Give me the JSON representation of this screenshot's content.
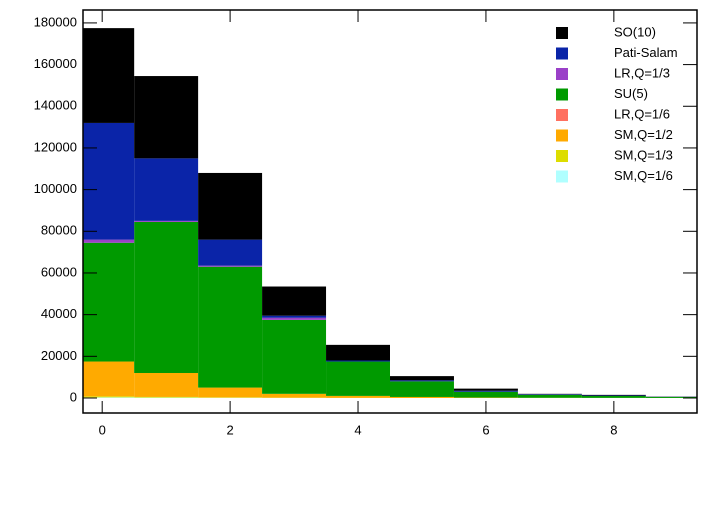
{
  "chart_data": {
    "type": "stacked-histogram",
    "bins": [
      -0.5,
      0.5,
      1.5,
      2.5,
      3.5,
      4.5,
      5.5,
      6.5,
      7.5,
      8.5,
      9.5
    ],
    "series": [
      {
        "name": "SM,Q=1/6",
        "color": "#b0ffff",
        "values": [
          300,
          200,
          100,
          50,
          0,
          0,
          0,
          0,
          0,
          0
        ]
      },
      {
        "name": "SM,Q=1/3",
        "color": "#dddd00",
        "values": [
          500,
          300,
          200,
          100,
          50,
          0,
          0,
          0,
          0,
          0
        ]
      },
      {
        "name": "SM,Q=1/2",
        "color": "#ffaa00",
        "values": [
          16700,
          11500,
          4700,
          1850,
          950,
          500,
          200,
          100,
          50,
          20
        ]
      },
      {
        "name": "LR,Q=1/6",
        "color": "#ff7060",
        "values": [
          0,
          0,
          0,
          0,
          0,
          0,
          0,
          0,
          0,
          0
        ]
      },
      {
        "name": "SU(5)",
        "color": "#009a00",
        "values": [
          57000,
          72500,
          58000,
          35500,
          16500,
          7500,
          2800,
          1400,
          950,
          480
        ]
      },
      {
        "name": "LR,Q=1/3",
        "color": "#9a40c8",
        "values": [
          1500,
          500,
          500,
          1000,
          0,
          0,
          0,
          0,
          0,
          0
        ]
      },
      {
        "name": "Pati-Salam",
        "color": "#0a24a8",
        "values": [
          56000,
          30000,
          12500,
          1000,
          500,
          500,
          500,
          300,
          200,
          100
        ]
      },
      {
        "name": "SO(10)",
        "color": "#000000",
        "values": [
          45500,
          39500,
          32000,
          14000,
          7500,
          2000,
          1000,
          200,
          300,
          100
        ]
      }
    ],
    "xlim": [
      -0.3,
      9.3
    ],
    "xticks": [
      0,
      2,
      4,
      6,
      8
    ],
    "ylim": [
      -7200,
      186200
    ],
    "yticks": [
      0,
      20000,
      40000,
      60000,
      80000,
      100000,
      120000,
      140000,
      160000,
      180000
    ],
    "legend": "upper right"
  }
}
